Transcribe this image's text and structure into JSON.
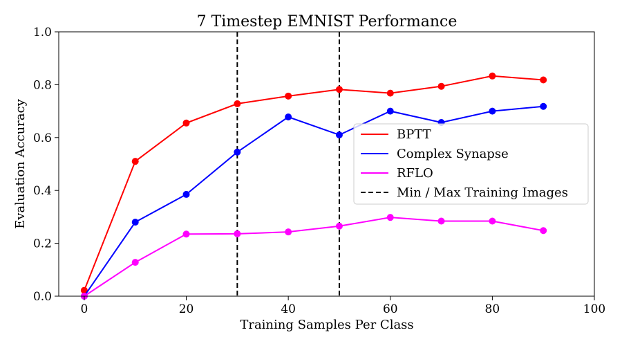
{
  "chart_data": {
    "type": "line",
    "title": "7 Timestep EMNIST Performance",
    "xlabel": "Training Samples Per Class",
    "ylabel": "Evaluation Accuracy",
    "xlim": [
      -5,
      100
    ],
    "ylim": [
      0.0,
      1.0
    ],
    "xticks": [
      0,
      20,
      40,
      60,
      80,
      100
    ],
    "yticks": [
      0.0,
      0.2,
      0.4,
      0.6,
      0.8,
      1.0
    ],
    "xtick_labels": [
      "0",
      "20",
      "40",
      "60",
      "80",
      "100"
    ],
    "ytick_labels": [
      "0.0",
      "0.2",
      "0.4",
      "0.6",
      "0.8",
      "1.0"
    ],
    "x": [
      0,
      10,
      20,
      30,
      40,
      50,
      60,
      70,
      80,
      90
    ],
    "series": [
      {
        "name": "BPTT",
        "color": "#ff0000",
        "values": [
          0.022,
          0.51,
          0.655,
          0.728,
          0.757,
          0.782,
          0.768,
          0.794,
          0.833,
          0.818
        ]
      },
      {
        "name": "Complex Synapse",
        "color": "#0000ff",
        "values": [
          0.0,
          0.28,
          0.385,
          0.545,
          0.678,
          0.61,
          0.7,
          0.657,
          0.7,
          0.718
        ]
      },
      {
        "name": "RFLO",
        "color": "#ff00ff",
        "values": [
          0.0,
          0.128,
          0.235,
          0.236,
          0.243,
          0.265,
          0.298,
          0.284,
          0.284,
          0.248
        ]
      }
    ],
    "vlines": {
      "name": "Min / Max Training Images",
      "x": [
        30,
        50
      ],
      "color": "#000000",
      "style": "dashed"
    },
    "legend": {
      "position": "center-right"
    },
    "grid": false
  }
}
